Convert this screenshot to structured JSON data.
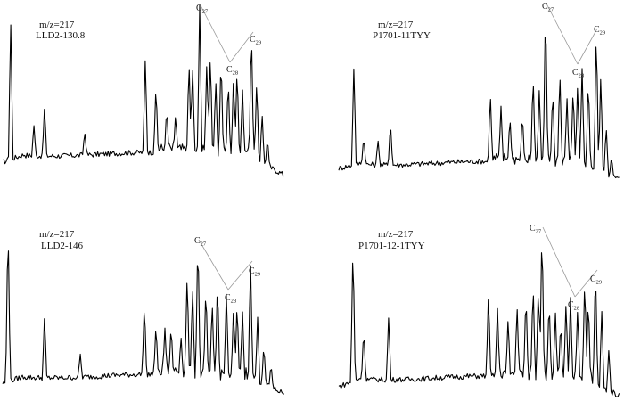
{
  "chart_data": [
    {
      "type": "line",
      "title": "",
      "mz_label": "m/z=217",
      "sample": "LLD2-130.8",
      "peak_labels": [
        "C27",
        "C28",
        "C29"
      ],
      "xlabel": "",
      "ylabel": "",
      "ylim": [
        0,
        100
      ]
    },
    {
      "type": "line",
      "title": "",
      "mz_label": "m/z=217",
      "sample": "P1701-11TYY",
      "peak_labels": [
        "C27",
        "C28",
        "C29"
      ],
      "xlabel": "",
      "ylabel": "",
      "ylim": [
        0,
        100
      ]
    },
    {
      "type": "line",
      "title": "",
      "mz_label": "m/z=217",
      "sample": "LLD2-146",
      "peak_labels": [
        "C27",
        "C28",
        "C29"
      ],
      "xlabel": "",
      "ylabel": "",
      "ylim": [
        0,
        100
      ]
    },
    {
      "type": "line",
      "title": "",
      "mz_label": "m/z=217",
      "sample": "P1701-12-1TYY",
      "peak_labels": [
        "C27",
        "C28",
        "C29"
      ],
      "xlabel": "",
      "ylabel": "",
      "ylim": [
        0,
        100
      ]
    }
  ]
}
